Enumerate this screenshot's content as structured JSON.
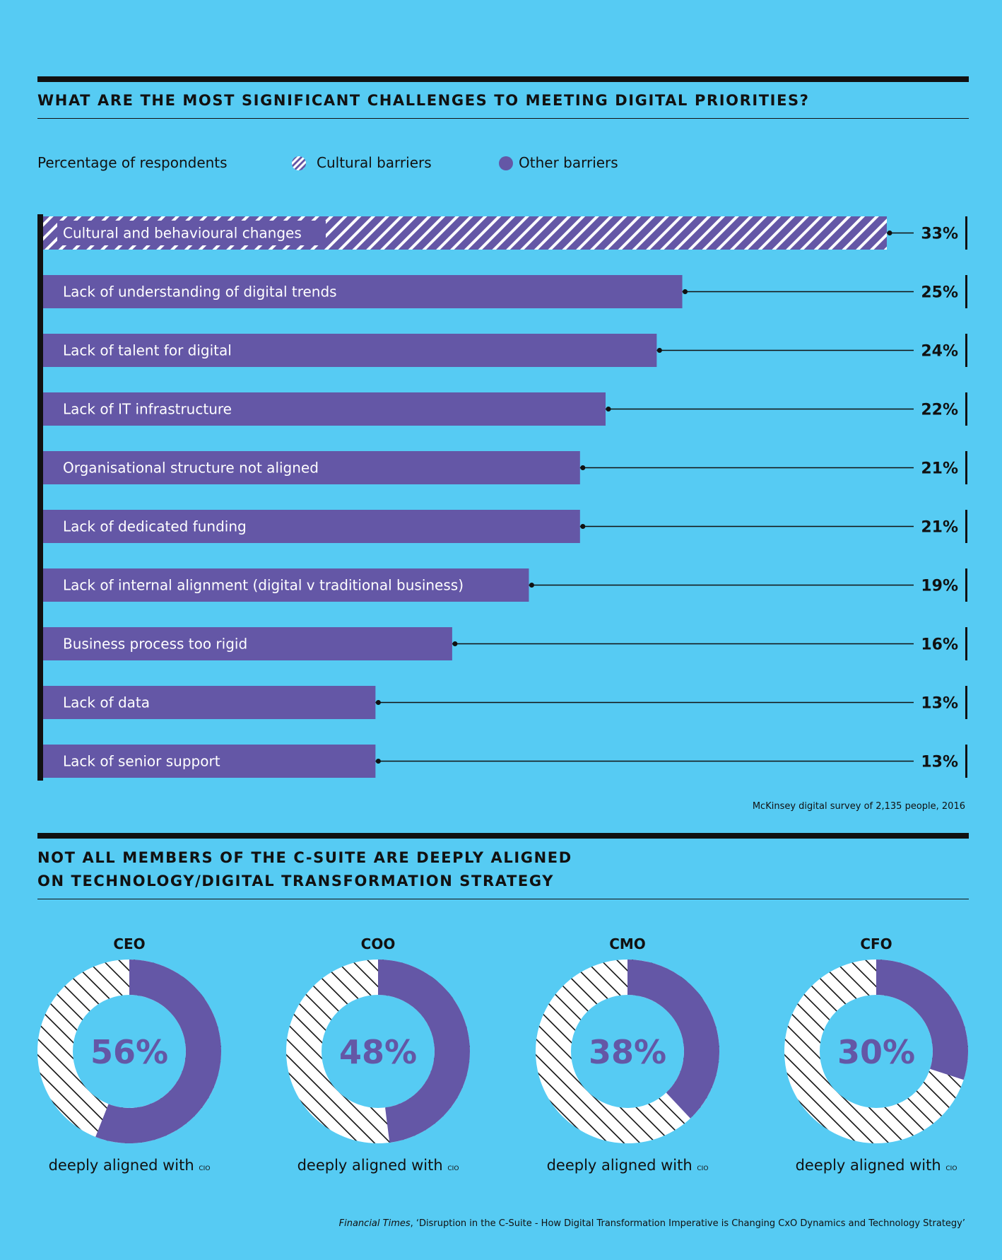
{
  "section1": {
    "title": "WHAT ARE THE MOST SIGNIFICANT CHALLENGES TO MEETING DIGITAL PRIORITIES?",
    "subtitle": "Percentage of respondents",
    "legend": [
      {
        "label": "Cultural barriers",
        "style": "hatched",
        "color": "#6457A6"
      },
      {
        "label": "Other barriers",
        "style": "solid",
        "color": "#6457A6"
      }
    ],
    "source": "McKinsey digital survey of 2,135 people, 2016"
  },
  "section2": {
    "title_line1": "NOT ALL MEMBERS OF THE C-SUITE ARE DEEPLY ALIGNED",
    "title_line2": "ON TECHNOLOGY/DIGITAL TRANSFORMATION STRATEGY",
    "caption_main": "deeply aligned with",
    "caption_sub": "CIO",
    "footer_publication": "Financial Times",
    "footer_rest": ", ‘Disruption in the C-Suite - How Digital Transformation Imperative is Changing CxO Dynamics and Technology Strategy’"
  },
  "colors": {
    "background": "#56CBF3",
    "bar": "#6457A6",
    "hatch_light": "#FFFFFF",
    "rule": "#111111"
  },
  "chart_data": [
    {
      "type": "bar",
      "orientation": "horizontal",
      "title": "WHAT ARE THE MOST SIGNIFICANT CHALLENGES TO MEETING DIGITAL PRIORITIES?",
      "ylabel": "Percentage of respondents",
      "xlim": [
        0,
        33
      ],
      "categories": [
        "Cultural and behavioural changes",
        "Lack of understanding of digital trends",
        "Lack of talent for digital",
        "Lack of IT infrastructure",
        "Organisational structure not aligned",
        "Lack of dedicated funding",
        "Lack of internal alignment (digital v traditional business)",
        "Business process too rigid",
        "Lack of data",
        "Lack of senior support"
      ],
      "values": [
        33,
        25,
        24,
        22,
        21,
        21,
        19,
        16,
        13,
        13
      ],
      "value_labels": [
        "33%",
        "25%",
        "24%",
        "22%",
        "21%",
        "21%",
        "19%",
        "16%",
        "13%",
        "13%"
      ],
      "group": [
        "Cultural barriers",
        "Other barriers",
        "Other barriers",
        "Other barriers",
        "Other barriers",
        "Other barriers",
        "Other barriers",
        "Other barriers",
        "Other barriers",
        "Other barriers"
      ],
      "legend": [
        "Cultural barriers",
        "Other barriers"
      ],
      "grid": false
    },
    {
      "type": "pie",
      "variant": "donut",
      "title": "NOT ALL MEMBERS OF THE C-SUITE ARE DEEPLY ALIGNED ON TECHNOLOGY/DIGITAL TRANSFORMATION STRATEGY",
      "categories": [
        "CEO",
        "COO",
        "CMO",
        "CFO"
      ],
      "values": [
        56,
        48,
        38,
        30
      ],
      "value_labels": [
        "56%",
        "48%",
        "38%",
        "30%"
      ]
    }
  ]
}
